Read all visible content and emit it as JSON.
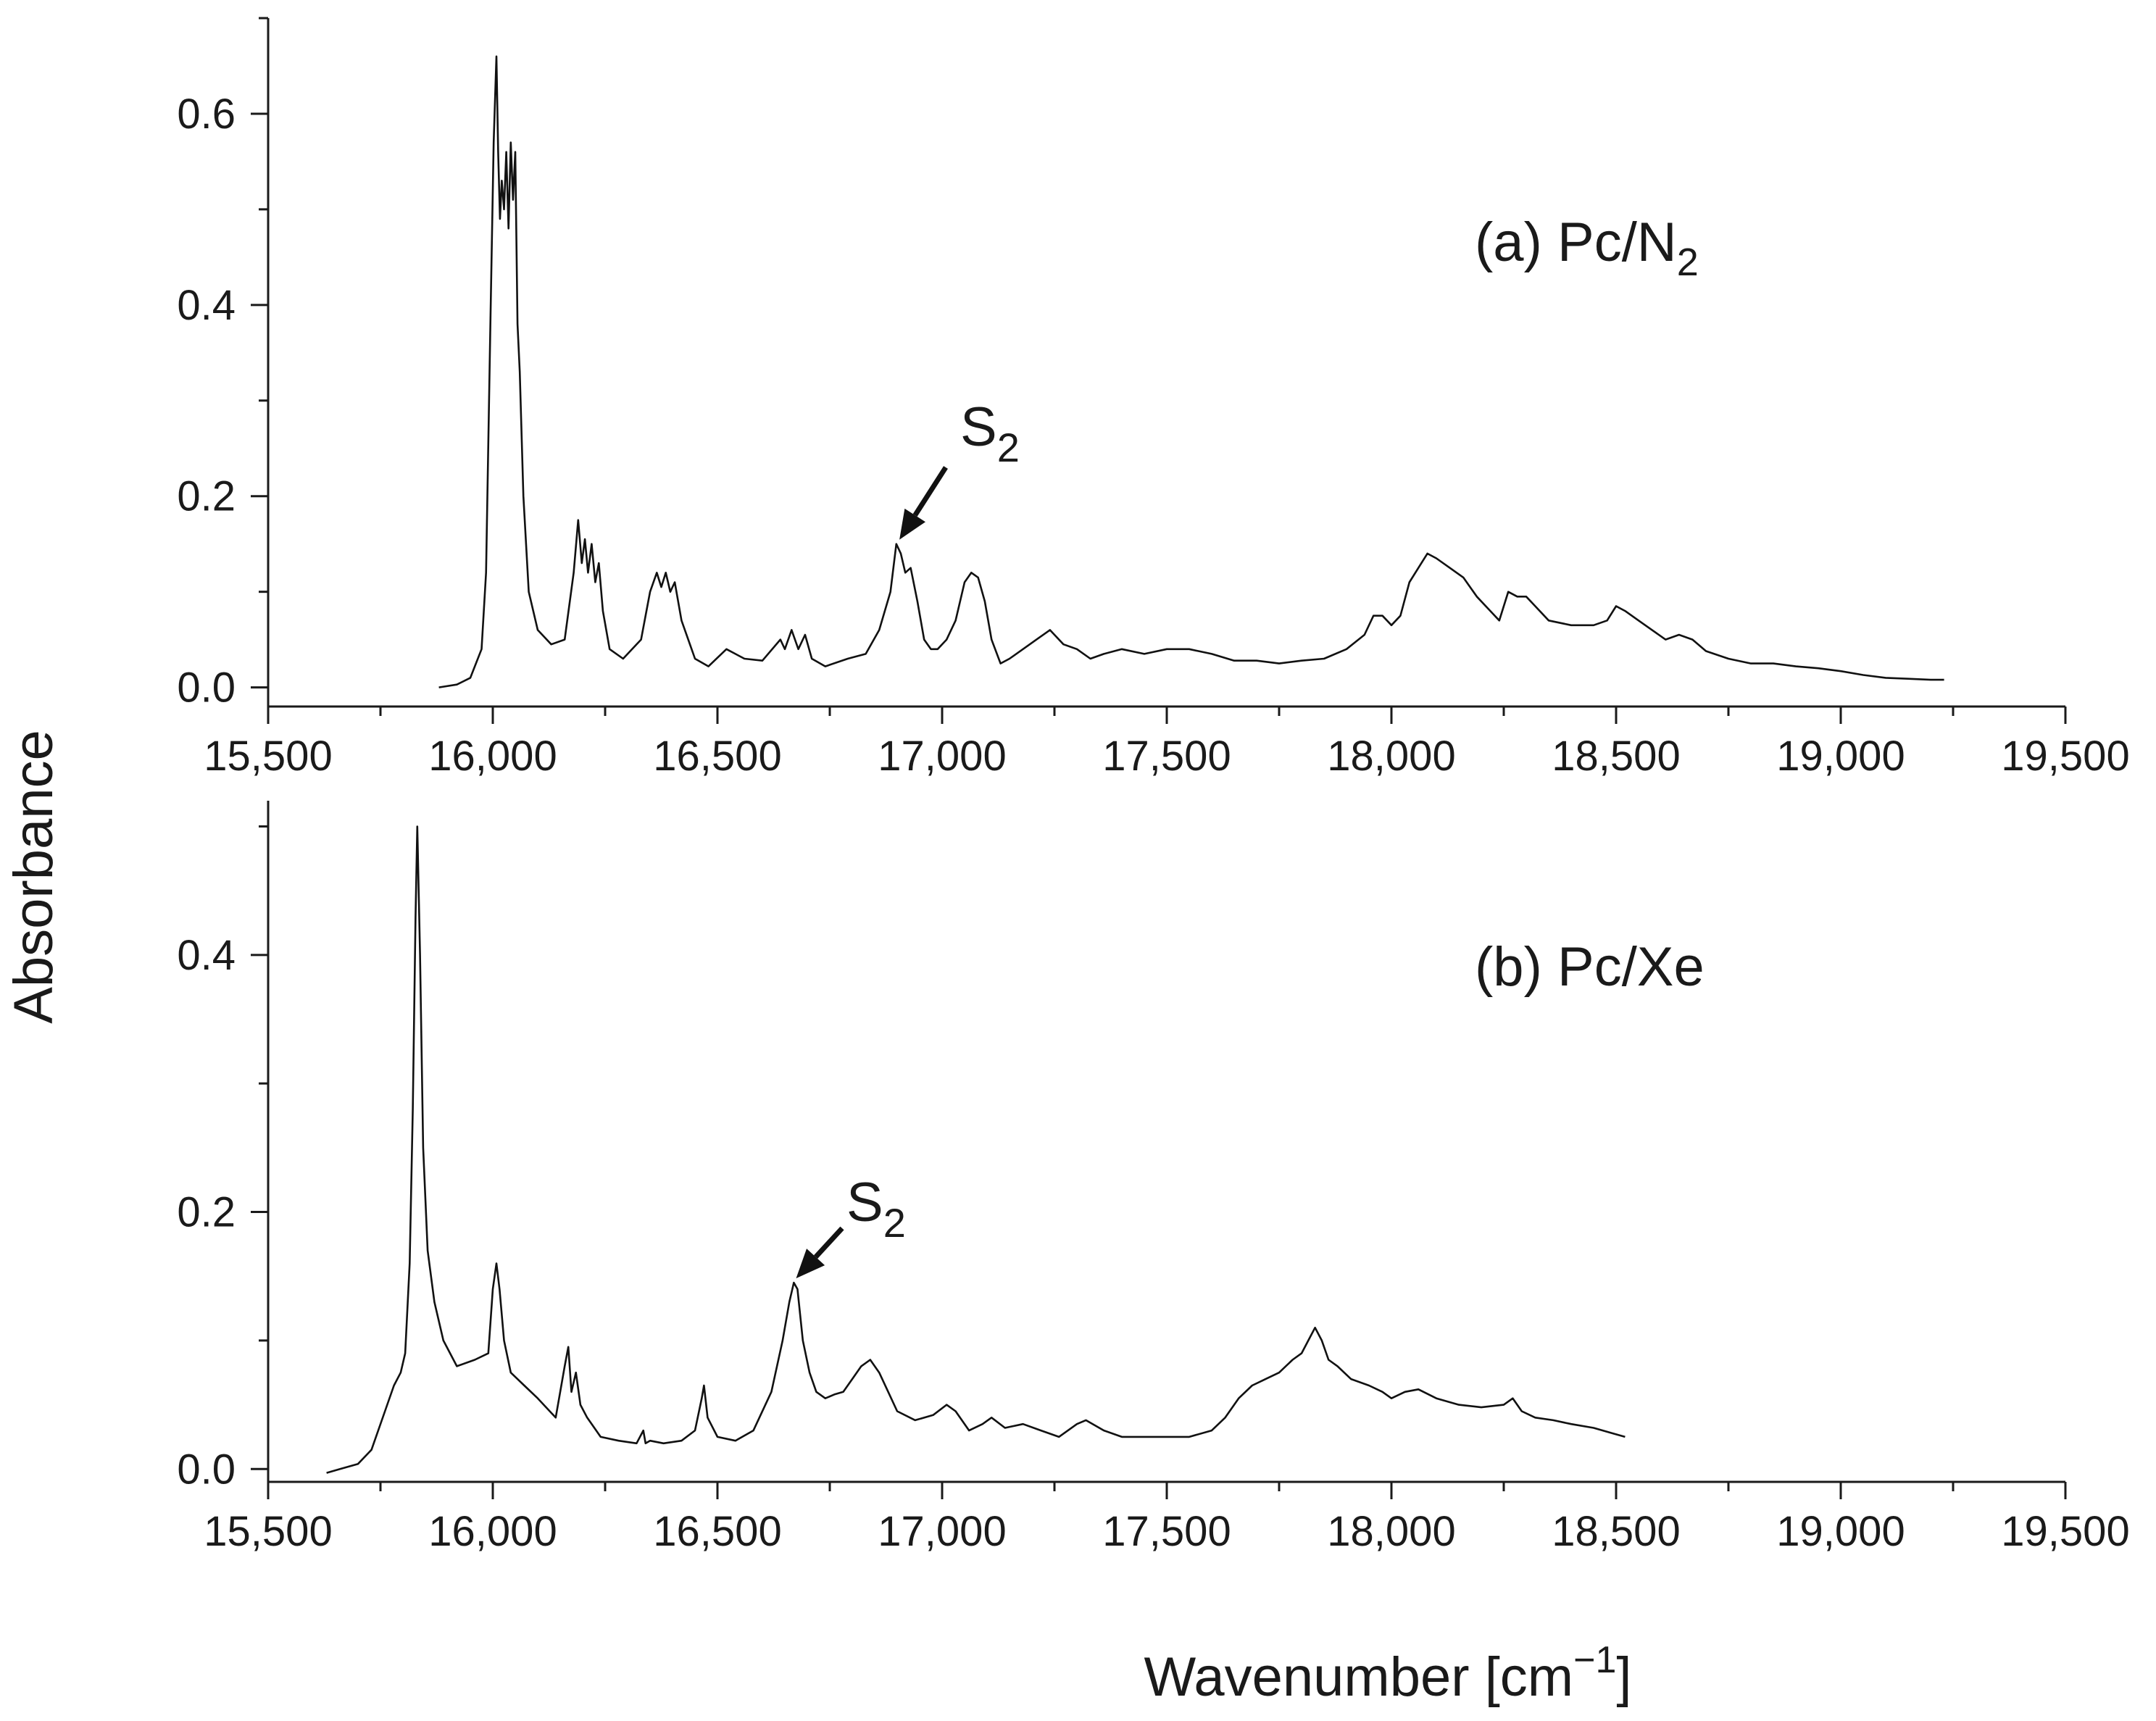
{
  "chart_data": [
    {
      "type": "line",
      "panel": "top",
      "label_main": "(a) Pc/N",
      "label_sub": "2",
      "ylabel": "Absorbance",
      "xlabel": "",
      "xlim": [
        15500,
        19500
      ],
      "ylim": [
        -0.02,
        0.7
      ],
      "xticks": [
        15500,
        16000,
        16500,
        17000,
        17500,
        18000,
        18500,
        19000,
        19500
      ],
      "xtick_labels": [
        "15,500",
        "16,000",
        "16,500",
        "17,000",
        "17,500",
        "18,000",
        "18,500",
        "19,000",
        "19,500"
      ],
      "yticks": [
        0.0,
        0.2,
        0.4,
        0.6
      ],
      "ytick_labels": [
        "0.0",
        "0.2",
        "0.4",
        "0.6"
      ],
      "annotation": {
        "text": "S",
        "sub": "2",
        "x": 16905,
        "y": 0.15
      },
      "series": [
        {
          "name": "Pc/N2",
          "x": [
            15880,
            15920,
            15950,
            15975,
            15985,
            15995,
            16002,
            16008,
            16012,
            16016,
            16020,
            16025,
            16030,
            16035,
            16040,
            16045,
            16050,
            16055,
            16060,
            16068,
            16080,
            16100,
            16130,
            16160,
            16180,
            16190,
            16198,
            16205,
            16212,
            16220,
            16228,
            16236,
            16245,
            16260,
            16290,
            16330,
            16350,
            16365,
            16375,
            16385,
            16395,
            16405,
            16420,
            16450,
            16480,
            16520,
            16560,
            16600,
            16640,
            16650,
            16665,
            16680,
            16695,
            16710,
            16740,
            16790,
            16830,
            16860,
            16885,
            16898,
            16908,
            16918,
            16930,
            16945,
            16960,
            16975,
            16990,
            17010,
            17030,
            17050,
            17065,
            17080,
            17095,
            17110,
            17130,
            17150,
            17180,
            17210,
            17240,
            17270,
            17300,
            17330,
            17360,
            17400,
            17450,
            17500,
            17550,
            17600,
            17650,
            17700,
            17750,
            17800,
            17850,
            17900,
            17940,
            17960,
            17980,
            18000,
            18020,
            18040,
            18060,
            18080,
            18100,
            18130,
            18160,
            18190,
            18220,
            18240,
            18260,
            18280,
            18300,
            18320,
            18350,
            18400,
            18450,
            18480,
            18500,
            18520,
            18550,
            18580,
            18610,
            18640,
            18670,
            18700,
            18750,
            18800,
            18850,
            18900,
            18950,
            19000,
            19050,
            19100,
            19150,
            19200,
            19230
          ],
          "y": [
            0.0,
            0.003,
            0.01,
            0.04,
            0.12,
            0.39,
            0.57,
            0.66,
            0.56,
            0.49,
            0.53,
            0.5,
            0.56,
            0.48,
            0.57,
            0.51,
            0.56,
            0.38,
            0.33,
            0.2,
            0.1,
            0.06,
            0.045,
            0.05,
            0.12,
            0.175,
            0.13,
            0.155,
            0.12,
            0.15,
            0.11,
            0.13,
            0.08,
            0.04,
            0.03,
            0.05,
            0.1,
            0.12,
            0.105,
            0.12,
            0.1,
            0.11,
            0.07,
            0.03,
            0.022,
            0.04,
            0.03,
            0.028,
            0.05,
            0.04,
            0.06,
            0.04,
            0.055,
            0.03,
            0.022,
            0.03,
            0.035,
            0.06,
            0.1,
            0.15,
            0.14,
            0.12,
            0.125,
            0.09,
            0.05,
            0.04,
            0.04,
            0.05,
            0.07,
            0.11,
            0.12,
            0.115,
            0.09,
            0.05,
            0.025,
            0.03,
            0.04,
            0.05,
            0.06,
            0.045,
            0.04,
            0.03,
            0.035,
            0.04,
            0.035,
            0.04,
            0.04,
            0.035,
            0.028,
            0.028,
            0.025,
            0.028,
            0.03,
            0.04,
            0.055,
            0.075,
            0.075,
            0.065,
            0.075,
            0.11,
            0.125,
            0.14,
            0.135,
            0.125,
            0.115,
            0.095,
            0.08,
            0.07,
            0.1,
            0.095,
            0.095,
            0.085,
            0.07,
            0.065,
            0.065,
            0.07,
            0.085,
            0.08,
            0.07,
            0.06,
            0.05,
            0.055,
            0.05,
            0.038,
            0.03,
            0.025,
            0.025,
            0.022,
            0.02,
            0.017,
            0.013,
            0.01,
            0.009,
            0.008,
            0.008
          ]
        }
      ]
    },
    {
      "type": "line",
      "panel": "bottom",
      "label_main": "(b)  Pc/Xe",
      "label_sub": "",
      "ylabel": "",
      "xlabel_main": "Wavenumber [cm",
      "xlabel_sup": "−1",
      "xlabel_end": "]",
      "xlim": [
        15500,
        19500
      ],
      "ylim": [
        -0.01,
        0.52
      ],
      "xticks": [
        15500,
        16000,
        16500,
        17000,
        17500,
        18000,
        18500,
        19000,
        19500
      ],
      "xtick_labels": [
        "15,500",
        "16,000",
        "16,500",
        "17,000",
        "17,500",
        "18,000",
        "18,500",
        "19,000",
        "19,500"
      ],
      "yticks": [
        0.0,
        0.2,
        0.4
      ],
      "ytick_labels": [
        "0.0",
        "0.2",
        "0.4"
      ],
      "annotation": {
        "text": "S",
        "sub": "2",
        "x": 16675,
        "y": 0.145
      },
      "series": [
        {
          "name": "Pc/Xe",
          "x": [
            15630,
            15660,
            15700,
            15730,
            15760,
            15780,
            15795,
            15805,
            15815,
            15822,
            15828,
            15832,
            15838,
            15845,
            15855,
            15870,
            15890,
            15920,
            15960,
            15990,
            16000,
            16008,
            16015,
            16025,
            16040,
            16070,
            16100,
            16140,
            16160,
            16168,
            16175,
            16185,
            16195,
            16210,
            16240,
            16280,
            16320,
            16335,
            16340,
            16350,
            16380,
            16420,
            16450,
            16465,
            16470,
            16478,
            16500,
            16540,
            16580,
            16620,
            16645,
            16660,
            16670,
            16678,
            16690,
            16705,
            16720,
            16740,
            16760,
            16780,
            16800,
            16820,
            16840,
            16860,
            16880,
            16900,
            16940,
            16980,
            17010,
            17030,
            17060,
            17090,
            17110,
            17140,
            17180,
            17220,
            17260,
            17300,
            17320,
            17360,
            17400,
            17450,
            17500,
            17550,
            17600,
            17630,
            17660,
            17690,
            17720,
            17750,
            17780,
            17800,
            17815,
            17830,
            17845,
            17860,
            17880,
            17910,
            17950,
            17980,
            18000,
            18030,
            18060,
            18100,
            18150,
            18200,
            18250,
            18270,
            18290,
            18320,
            18360,
            18400,
            18450,
            18490,
            18520
          ],
          "y": [
            -0.003,
            0.0,
            0.004,
            0.015,
            0.045,
            0.065,
            0.075,
            0.09,
            0.16,
            0.28,
            0.43,
            0.5,
            0.4,
            0.25,
            0.17,
            0.13,
            0.1,
            0.08,
            0.085,
            0.09,
            0.14,
            0.16,
            0.14,
            0.1,
            0.075,
            0.065,
            0.055,
            0.04,
            0.08,
            0.095,
            0.06,
            0.075,
            0.05,
            0.04,
            0.025,
            0.022,
            0.02,
            0.03,
            0.02,
            0.022,
            0.02,
            0.022,
            0.03,
            0.055,
            0.065,
            0.04,
            0.025,
            0.022,
            0.03,
            0.06,
            0.1,
            0.13,
            0.145,
            0.14,
            0.1,
            0.075,
            0.06,
            0.055,
            0.058,
            0.06,
            0.07,
            0.08,
            0.085,
            0.075,
            0.06,
            0.045,
            0.038,
            0.042,
            0.05,
            0.045,
            0.03,
            0.035,
            0.04,
            0.032,
            0.035,
            0.03,
            0.025,
            0.035,
            0.038,
            0.03,
            0.025,
            0.025,
            0.025,
            0.025,
            0.03,
            0.04,
            0.055,
            0.065,
            0.07,
            0.075,
            0.085,
            0.09,
            0.1,
            0.11,
            0.1,
            0.085,
            0.08,
            0.07,
            0.065,
            0.06,
            0.055,
            0.06,
            0.062,
            0.055,
            0.05,
            0.048,
            0.05,
            0.055,
            0.045,
            0.04,
            0.038,
            0.035,
            0.032,
            0.028,
            0.025
          ]
        }
      ]
    }
  ]
}
